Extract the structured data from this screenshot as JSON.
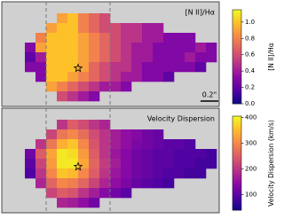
{
  "chart_data": [
    {
      "type": "heatmap",
      "title": "[N II]/Hα",
      "colorbar_label": "[N II]/Hα",
      "colormap": "plasma",
      "clim": [
        0,
        1.15
      ],
      "cticks": [
        {
          "value": 0,
          "label": "0.0"
        },
        0.2,
        0.4,
        0.6,
        0.8,
        {
          "value": 1,
          "label": "1.0"
        }
      ],
      "annotations": [
        "0.2\""
      ],
      "values": [
        [
          null,
          null,
          null,
          0.9,
          1.0,
          0.8,
          0.7,
          0.6,
          null,
          null,
          null,
          null,
          null,
          null,
          null,
          null,
          null,
          null
        ],
        [
          null,
          null,
          0.9,
          1.0,
          1.0,
          0.8,
          0.7,
          0.6,
          0.6,
          0.5,
          0.5,
          0.4,
          0.4,
          null,
          null,
          null,
          null,
          null
        ],
        [
          null,
          0.8,
          1.0,
          1.0,
          1.0,
          0.9,
          0.8,
          0.7,
          0.6,
          0.5,
          0.5,
          0.4,
          0.4,
          0.3,
          0.3,
          0.3,
          null,
          null
        ],
        [
          0.3,
          0.9,
          1.0,
          1.0,
          1.0,
          0.9,
          0.8,
          0.7,
          0.6,
          0.5,
          0.4,
          0.4,
          0.3,
          0.3,
          0.3,
          0.3,
          0.4,
          0.3
        ],
        [
          0.2,
          0.4,
          1.0,
          1.0,
          1.0,
          0.9,
          0.8,
          0.7,
          0.6,
          0.5,
          0.4,
          0.4,
          0.3,
          0.3,
          0.3,
          0.4,
          0.3,
          0.3
        ],
        [
          0.3,
          0.3,
          1.0,
          1.0,
          1.0,
          0.9,
          0.7,
          0.6,
          0.5,
          0.5,
          0.4,
          0.3,
          0.3,
          0.3,
          0.3,
          0.3,
          0.2,
          null
        ],
        [
          null,
          0.3,
          1.0,
          1.0,
          0.9,
          0.8,
          0.7,
          0.6,
          0.5,
          0.4,
          0.4,
          0.3,
          0.3,
          0.2,
          null,
          null,
          null,
          null
        ],
        [
          null,
          null,
          0.9,
          0.8,
          0.7,
          0.6,
          0.5,
          0.4,
          0.4,
          0.3,
          null,
          null,
          null,
          null,
          null,
          null,
          null,
          null
        ],
        [
          null,
          null,
          null,
          0.6,
          0.5,
          0.4,
          0.3,
          null,
          null,
          null,
          null,
          null,
          null,
          null,
          null,
          null,
          null,
          null
        ]
      ]
    },
    {
      "type": "heatmap",
      "title": "Velocity Dispersion",
      "colorbar_label": "Velocity Dispersion (km/s)",
      "colormap": "plasma",
      "clim": [
        40,
        405
      ],
      "cticks": [
        100,
        200,
        300,
        400
      ],
      "values": [
        [
          null,
          null,
          null,
          200,
          250,
          230,
          200,
          180,
          null,
          null,
          null,
          null,
          null,
          null,
          null,
          null,
          null,
          null
        ],
        [
          null,
          null,
          220,
          280,
          300,
          270,
          230,
          200,
          170,
          150,
          140,
          120,
          110,
          null,
          null,
          null,
          null,
          null
        ],
        [
          null,
          200,
          280,
          340,
          360,
          300,
          240,
          200,
          170,
          150,
          130,
          120,
          110,
          100,
          100,
          90,
          null,
          null
        ],
        [
          120,
          250,
          330,
          390,
          380,
          320,
          250,
          200,
          160,
          140,
          120,
          110,
          100,
          100,
          90,
          90,
          90,
          80
        ],
        [
          100,
          220,
          320,
          390,
          390,
          330,
          260,
          210,
          170,
          140,
          120,
          110,
          100,
          100,
          90,
          90,
          80,
          80
        ],
        [
          90,
          200,
          300,
          360,
          350,
          300,
          250,
          200,
          160,
          140,
          120,
          110,
          100,
          90,
          90,
          80,
          80,
          null
        ],
        [
          null,
          180,
          260,
          300,
          290,
          260,
          220,
          180,
          150,
          130,
          110,
          100,
          90,
          80,
          null,
          null,
          null,
          null
        ],
        [
          null,
          null,
          220,
          250,
          240,
          200,
          170,
          140,
          120,
          100,
          null,
          null,
          null,
          null,
          null,
          null,
          null,
          null
        ],
        [
          null,
          null,
          null,
          180,
          170,
          150,
          120,
          null,
          null,
          null,
          null,
          null,
          null,
          null,
          null,
          null,
          null,
          null
        ]
      ]
    }
  ]
}
